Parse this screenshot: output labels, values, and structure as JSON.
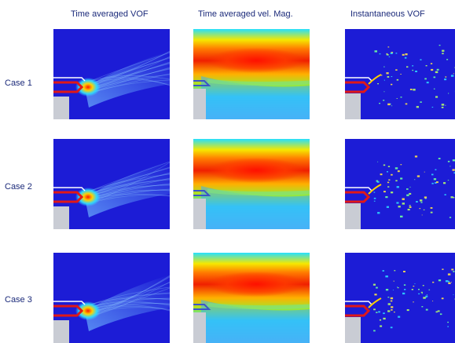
{
  "columns": [
    {
      "label": "Time averaged VOF"
    },
    {
      "label": "Time averaged vel. Mag."
    },
    {
      "label": "Instantaneous VOF"
    }
  ],
  "rows": [
    {
      "label": "Case 1"
    },
    {
      "label": "Case 2"
    },
    {
      "label": "Case 3"
    }
  ],
  "panel_kinds": [
    "time-averaged-vof-contour",
    "time-averaged-velocity-magnitude-contour",
    "instantaneous-vof-contour"
  ],
  "colors": {
    "text": "#1b2a7a",
    "field_background": "#1c1cd6",
    "nozzle_red": "#e01818",
    "wall_grey": "#c9ccd4",
    "wall_blue": "#3b55c8"
  }
}
